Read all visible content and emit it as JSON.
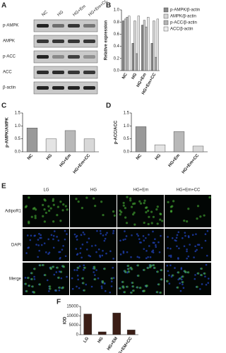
{
  "panels": [
    "A",
    "B",
    "C",
    "D",
    "E",
    "F"
  ],
  "blot": {
    "columns": [
      "NC",
      "HG",
      "HG+Em",
      "HG+Em+CC"
    ],
    "rows": [
      "p-AMPK",
      "AMPK",
      "p-ACC",
      "ACC",
      "β-actin"
    ]
  },
  "microscopy": {
    "columns": [
      "LG",
      "HG",
      "HG+Em",
      "HG+Em+CC"
    ],
    "rows": [
      "AdipoR1",
      "DAPI",
      "Merge"
    ]
  },
  "chart_data": [
    {
      "type": "bar",
      "ylabel": "Relative expression",
      "categories": [
        "NC",
        "HG",
        "HG+Em",
        "HG+Em+CC"
      ],
      "series": [
        {
          "name": "p-AMPK/β-actin",
          "color": "#8a8a8a",
          "values": [
            0.82,
            0.45,
            0.75,
            0.45
          ]
        },
        {
          "name": "AMPK/β-actin",
          "color": "#d6d6d6",
          "values": [
            0.85,
            0.82,
            0.83,
            0.82
          ]
        },
        {
          "name": "p-ACC/β-actin",
          "color": "#b4b4b4",
          "values": [
            0.88,
            0.28,
            0.72,
            0.22
          ]
        },
        {
          "name": "ACC/β-actin",
          "color": "#ececec",
          "values": [
            0.9,
            0.9,
            0.88,
            0.85
          ]
        }
      ],
      "ylim": [
        0,
        1.0
      ],
      "yticks": [
        {
          "value": 0,
          "label": "0.0"
        },
        0.2,
        0.4,
        0.6,
        0.8,
        {
          "value": 1,
          "label": "1.0"
        }
      ]
    },
    {
      "type": "bar",
      "ylabel": "p-AMPK/AMPK",
      "categories": [
        "NC",
        "HG",
        "HG+Em",
        "HG+Em+CC"
      ],
      "values": [
        0.92,
        0.5,
        0.82,
        0.5
      ],
      "colors": [
        "#999999",
        "#e4e4e4",
        "#b8b8b8",
        "#d8d8d8"
      ],
      "ylim": [
        0,
        1.5
      ],
      "yticks": [
        {
          "value": 0,
          "label": "0.0"
        },
        0.5,
        {
          "value": 1,
          "label": "1.0"
        },
        1.5
      ]
    },
    {
      "type": "bar",
      "ylabel": "p-ACC/ACC",
      "categories": [
        "NC",
        "HG",
        "HG+Em",
        "HG+Em+CC"
      ],
      "values": [
        0.97,
        0.27,
        0.78,
        0.22
      ],
      "colors": [
        "#999999",
        "#e4e4e4",
        "#b8b8b8",
        "#d8d8d8"
      ],
      "ylim": [
        0,
        1.5
      ],
      "yticks": [
        {
          "value": 0,
          "label": "0.0"
        },
        0.5,
        {
          "value": 1,
          "label": "1.0"
        },
        1.5
      ]
    },
    {
      "type": "bar",
      "ylabel": "IOD",
      "categories": [
        "LG",
        "HG",
        "HG+EM",
        "HG+EM+CC"
      ],
      "values": [
        11000,
        1500,
        11500,
        2500
      ],
      "colors": [
        "#3b1e16",
        "#3b1e16",
        "#3b1e16",
        "#3b1e16"
      ],
      "ylim": [
        0,
        15000
      ],
      "yticks": [
        0,
        5000,
        10000,
        15000
      ]
    }
  ]
}
